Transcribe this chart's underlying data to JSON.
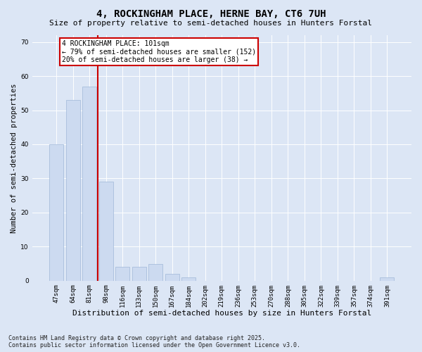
{
  "title": "4, ROCKINGHAM PLACE, HERNE BAY, CT6 7UH",
  "subtitle": "Size of property relative to semi-detached houses in Hunters Forstal",
  "xlabel": "Distribution of semi-detached houses by size in Hunters Forstal",
  "ylabel": "Number of semi-detached properties",
  "categories": [
    "47sqm",
    "64sqm",
    "81sqm",
    "98sqm",
    "116sqm",
    "133sqm",
    "150sqm",
    "167sqm",
    "184sqm",
    "202sqm",
    "219sqm",
    "236sqm",
    "253sqm",
    "270sqm",
    "288sqm",
    "305sqm",
    "322sqm",
    "339sqm",
    "357sqm",
    "374sqm",
    "391sqm"
  ],
  "values": [
    40,
    53,
    57,
    29,
    4,
    4,
    5,
    2,
    1,
    0,
    0,
    0,
    0,
    0,
    0,
    0,
    0,
    0,
    0,
    0,
    1
  ],
  "bar_color": "#ccdaf0",
  "bar_edgecolor": "#a0b8d8",
  "vline_x_pos": 2.5,
  "vline_color": "#cc0000",
  "property_label": "4 ROCKINGHAM PLACE: 101sqm",
  "annotation_line1": "← 79% of semi-detached houses are smaller (152)",
  "annotation_line2": "20% of semi-detached houses are larger (38) →",
  "ylim": [
    0,
    72
  ],
  "yticks": [
    0,
    10,
    20,
    30,
    40,
    50,
    60,
    70
  ],
  "background_color": "#dce6f5",
  "plot_background": "#dce6f5",
  "footer_line1": "Contains HM Land Registry data © Crown copyright and database right 2025.",
  "footer_line2": "Contains public sector information licensed under the Open Government Licence v3.0.",
  "title_fontsize": 10,
  "subtitle_fontsize": 8,
  "xlabel_fontsize": 8,
  "ylabel_fontsize": 7.5,
  "tick_fontsize": 6.5,
  "annotation_fontsize": 7,
  "footer_fontsize": 6
}
